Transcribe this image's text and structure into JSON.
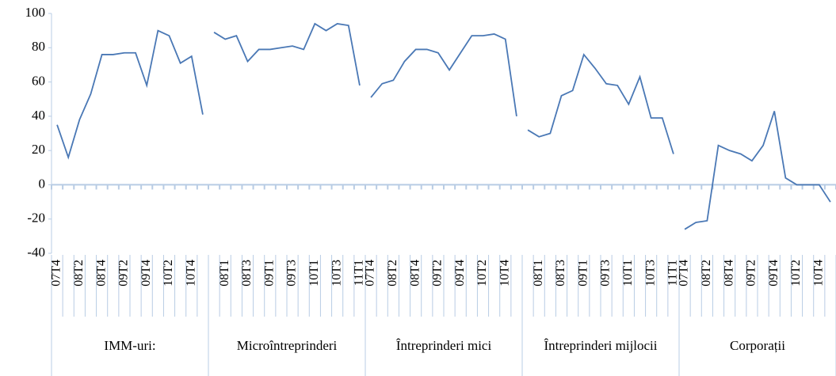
{
  "chart_data": {
    "type": "line",
    "categories": [
      "07T4",
      null,
      "08T2",
      null,
      "08T4",
      null,
      "09T2",
      null,
      "09T4",
      null,
      "10T2",
      null,
      "10T4",
      null,
      null,
      "08T1",
      null,
      "08T3",
      null,
      "09T1",
      null,
      "09T3",
      null,
      "10T1",
      null,
      "10T3",
      null,
      "11T1",
      "07T4",
      null,
      "08T2",
      null,
      "08T4",
      null,
      "09T2",
      null,
      "09T4",
      null,
      "10T2",
      null,
      "10T4",
      null,
      null,
      "08T1",
      null,
      "08T3",
      null,
      "09T1",
      null,
      "09T3",
      null,
      "10T1",
      null,
      "10T3",
      null,
      "11T1",
      "07T4",
      null,
      "08T2",
      null,
      "08T4",
      null,
      "09T2",
      null,
      "09T4",
      null,
      "10T2",
      null,
      "10T4",
      null
    ],
    "groups": [
      "IMM-uri:",
      "Microîntreprinderi",
      "Întreprinderi mici",
      "Întreprinderi mijlocii",
      "Corporații"
    ],
    "series": [
      {
        "color": "#4a78b5",
        "values": [
          35,
          16,
          38,
          53,
          76,
          76,
          77,
          77,
          58,
          90,
          87,
          71,
          75,
          41,
          89,
          85,
          87,
          72,
          79,
          79,
          80,
          81,
          79,
          94,
          90,
          94,
          93,
          58,
          51,
          59,
          61,
          72,
          79,
          79,
          77,
          67,
          77,
          87,
          87,
          88,
          85,
          40,
          32,
          28,
          30,
          52,
          55,
          76,
          68,
          59,
          58,
          47,
          63,
          39,
          39,
          18,
          -26,
          -22,
          -21,
          23,
          20,
          18,
          14,
          23,
          43,
          4,
          0,
          0,
          0,
          -10
        ]
      }
    ],
    "ylim": [
      -40,
      100
    ],
    "yticks": [
      -40,
      -20,
      0,
      20,
      40,
      60,
      80,
      100
    ]
  }
}
